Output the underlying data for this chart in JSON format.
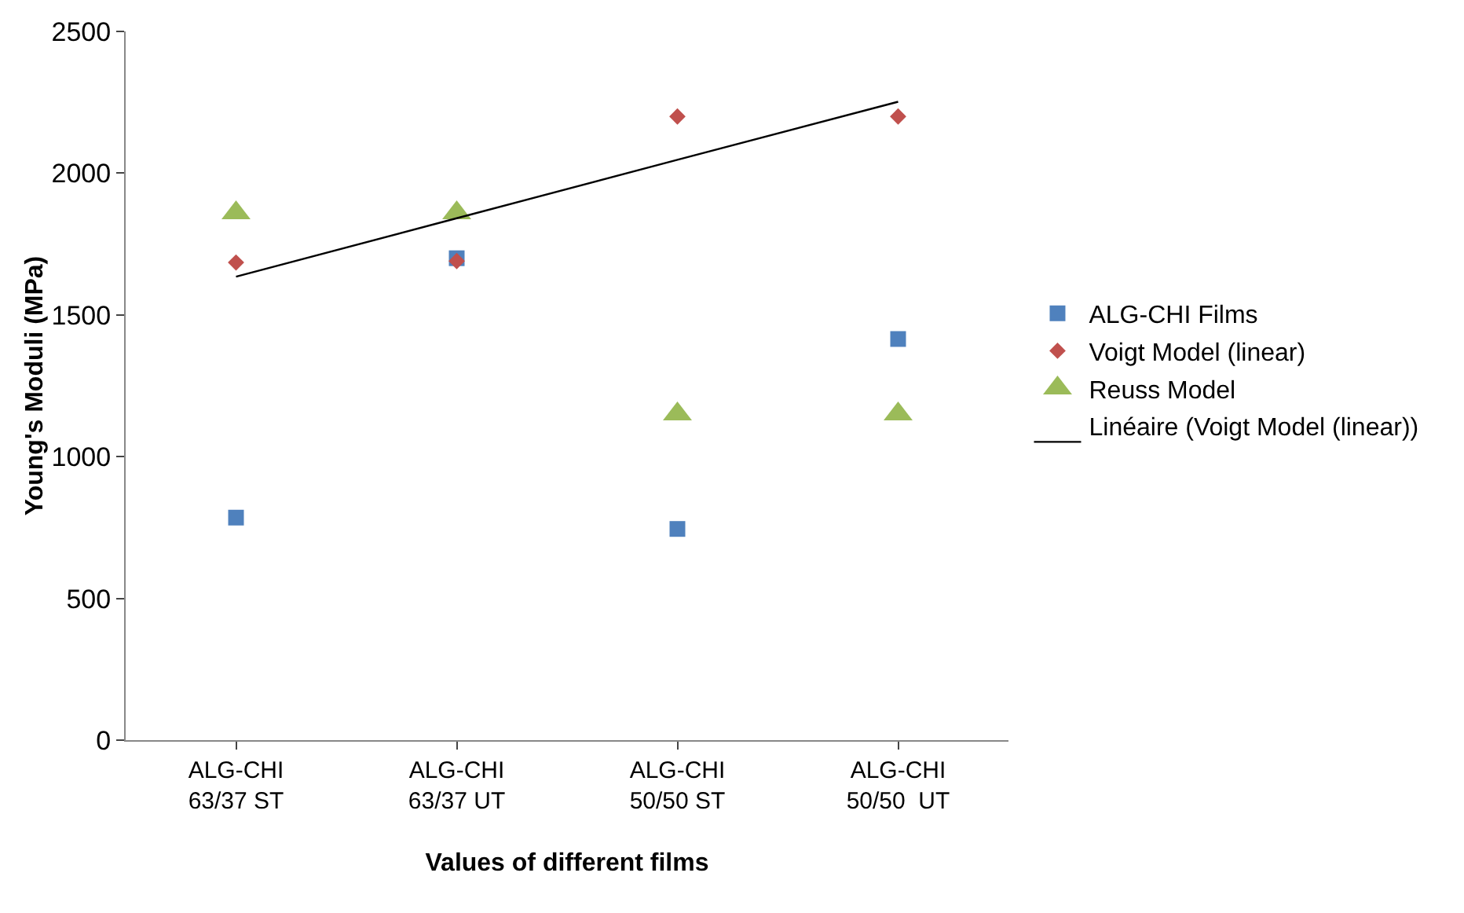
{
  "chart_data": {
    "type": "scatter",
    "xlabel": "Values of different films",
    "ylabel": "Young's Moduli (MPa)",
    "categories": [
      "ALG-CHI\n63/37 ST",
      "ALG-CHI\n63/37 UT",
      "ALG-CHI\n50/50 ST",
      "ALG-CHI\n50/50  UT"
    ],
    "ylim": [
      0,
      2500
    ],
    "yticks": [
      0,
      500,
      1000,
      1500,
      2000,
      2500
    ],
    "grid": false,
    "legend": "right",
    "series": [
      {
        "name": "ALG-CHI Films",
        "color": "#4f81bd",
        "marker": "square",
        "values": [
          785,
          1700,
          745,
          1415
        ]
      },
      {
        "name": "Voigt Model (linear)",
        "color": "#c0504d",
        "marker": "diamond",
        "values": [
          1685,
          1690,
          2200,
          2200
        ]
      },
      {
        "name": "Reuss Model",
        "color": "#9bbb59",
        "marker": "triangle",
        "values": [
          1860,
          1860,
          1150,
          1150
        ]
      },
      {
        "name": "Linéaire (Voigt Model (linear))",
        "type": "line",
        "color": "#000000",
        "marker": "none",
        "values": [
          1635,
          1841,
          2047,
          2252
        ]
      }
    ]
  }
}
